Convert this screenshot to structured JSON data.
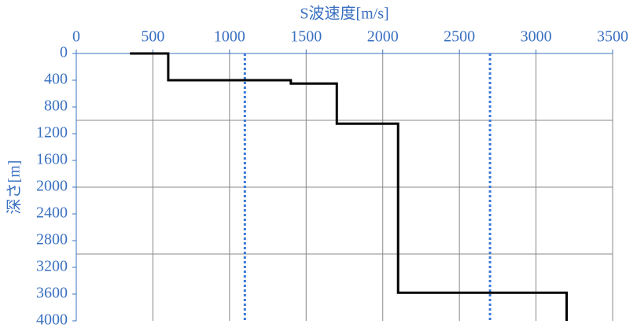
{
  "chart_data": {
    "type": "line",
    "xlabel": "S波速度[m/s]",
    "ylabel": "深さ[m]",
    "xlim": [
      0,
      3500
    ],
    "xticks": [
      0,
      500,
      1000,
      1500,
      2000,
      2500,
      3000,
      3500
    ],
    "ylim": [
      0,
      4000
    ],
    "yticks": [
      0,
      400,
      800,
      1200,
      1600,
      2000,
      2400,
      2800,
      3200,
      3600,
      4000
    ],
    "y_inverted": true,
    "x_axis_position": "top",
    "ygrid": [
      1000,
      2000,
      3000
    ],
    "xgrid": true,
    "series": [
      {
        "color": "#000000",
        "x": [
          350,
          600,
          600,
          1400,
          1400,
          1700,
          1700,
          2100,
          2100,
          3200,
          3200
        ],
        "values": [
          0,
          0,
          400,
          400,
          450,
          450,
          1050,
          1050,
          3580,
          3580,
          4000
        ]
      }
    ],
    "vlines": {
      "color": "#3b78d8",
      "values": [
        1100,
        2700
      ]
    },
    "axis_color": "#3a70c0"
  }
}
